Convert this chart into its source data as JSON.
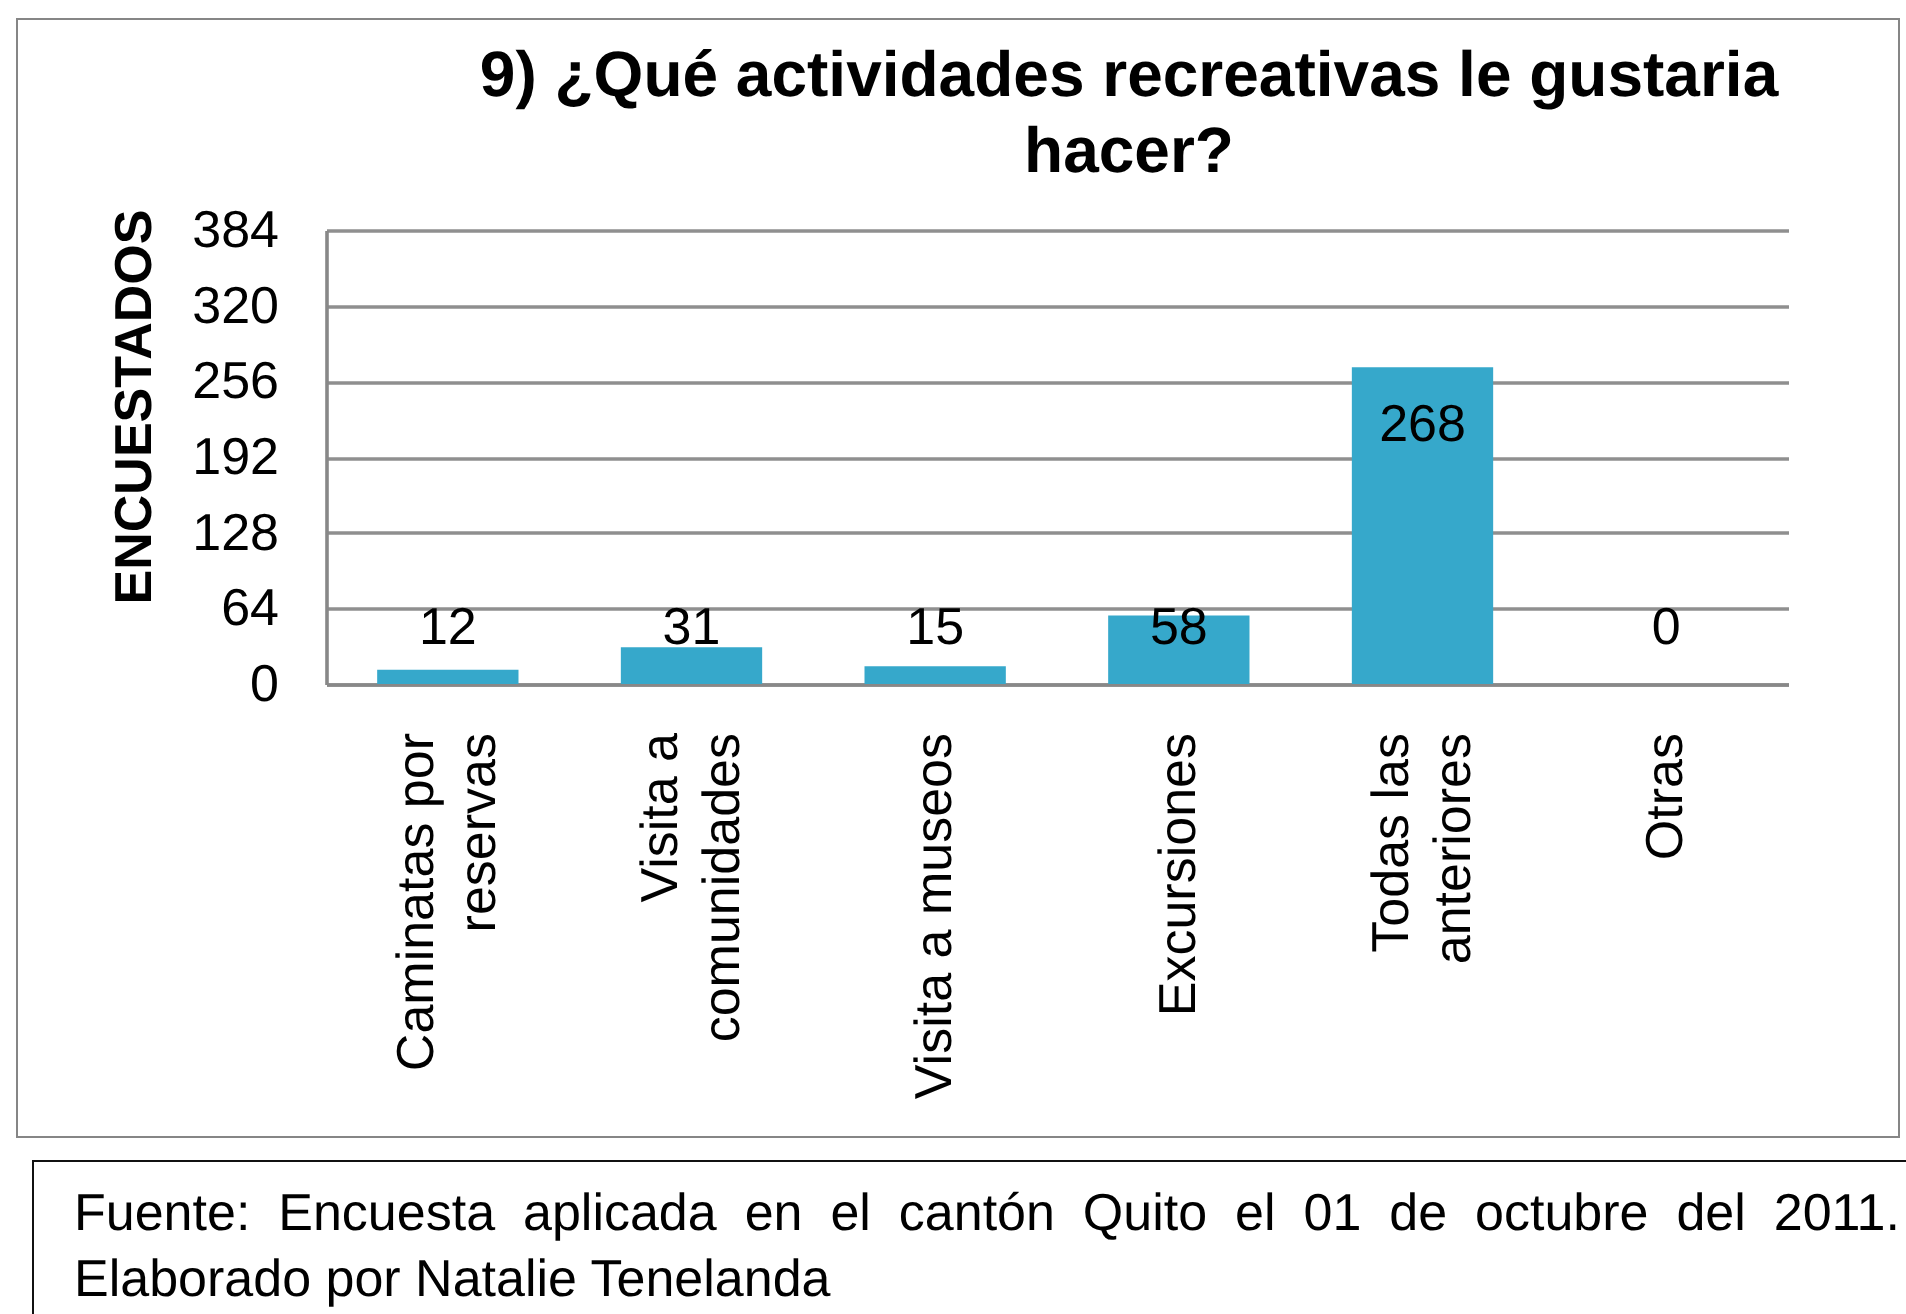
{
  "chart_data": {
    "type": "bar",
    "title": "9) ¿Qué actividades recreativas le gustaria hacer?",
    "ylabel": "ENCUESTADOS",
    "categories": [
      "Caminatas por reservas",
      "Visita a comunidades",
      "Visita a museos",
      "Excursiones",
      "Todas las anteriores",
      "Otras"
    ],
    "values": [
      12,
      31,
      15,
      58,
      268,
      0
    ],
    "color": "#36a8cb",
    "ylim": [
      0,
      384
    ],
    "yticks": [
      0,
      64,
      128,
      192,
      256,
      320,
      384
    ],
    "grid": "y",
    "data_labels": true,
    "annotations": [
      "Fuente: Encuesta aplicada en el cantón Quito el 01 de octubre del 2011.",
      "Elaborado por Natalie Tenelanda"
    ]
  }
}
